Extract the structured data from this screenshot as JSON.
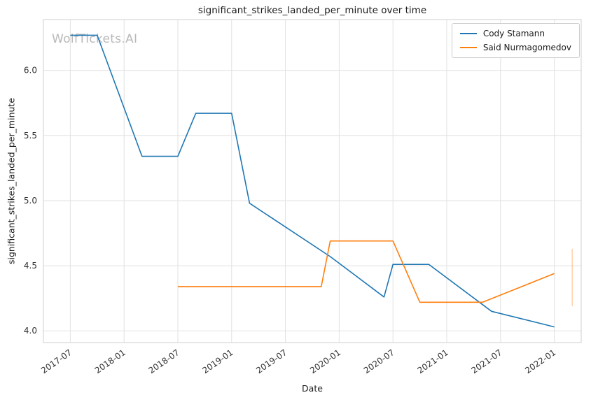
{
  "watermark": "WolfTickets.AI",
  "chart_data": {
    "type": "line",
    "title": "significant_strikes_landed_per_minute over time",
    "xlabel": "Date",
    "ylabel": "significant_strikes_landed_per_minute",
    "grid": true,
    "legend_position": "upper right",
    "x_range": [
      "2017-04",
      "2022-04"
    ],
    "y_range": [
      3.91,
      6.39
    ],
    "x_ticks": [
      "2017-07",
      "2018-01",
      "2018-07",
      "2019-01",
      "2019-07",
      "2020-01",
      "2020-07",
      "2021-01",
      "2021-07",
      "2022-01"
    ],
    "y_ticks": [
      4.0,
      4.5,
      5.0,
      5.5,
      6.0
    ],
    "series": [
      {
        "name": "Cody Stamann",
        "color": "#1f77b4",
        "points": [
          [
            "2017-07",
            6.27
          ],
          [
            "2017-10",
            6.27
          ],
          [
            "2018-03",
            5.34
          ],
          [
            "2018-07",
            5.34
          ],
          [
            "2018-09",
            5.67
          ],
          [
            "2019-01",
            5.67
          ],
          [
            "2019-03",
            4.98
          ],
          [
            "2019-12",
            4.57
          ],
          [
            "2020-06",
            4.26
          ],
          [
            "2020-07",
            4.51
          ],
          [
            "2020-11",
            4.51
          ],
          [
            "2021-06",
            4.15
          ],
          [
            "2022-01",
            4.03
          ]
        ]
      },
      {
        "name": "Said Nurmagomedov",
        "color": "#ff7f0e",
        "points": [
          [
            "2018-07",
            4.34
          ],
          [
            "2019-11",
            4.34
          ],
          [
            "2019-12",
            4.69
          ],
          [
            "2020-07",
            4.69
          ],
          [
            "2020-10",
            4.22
          ],
          [
            "2021-05",
            4.22
          ],
          [
            "2022-01",
            4.44
          ]
        ]
      }
    ],
    "faint_segment": {
      "date": "2022-03",
      "y_from": 4.19,
      "y_to": 4.63,
      "color": "#ff7f0e",
      "opacity": 0.35
    }
  }
}
